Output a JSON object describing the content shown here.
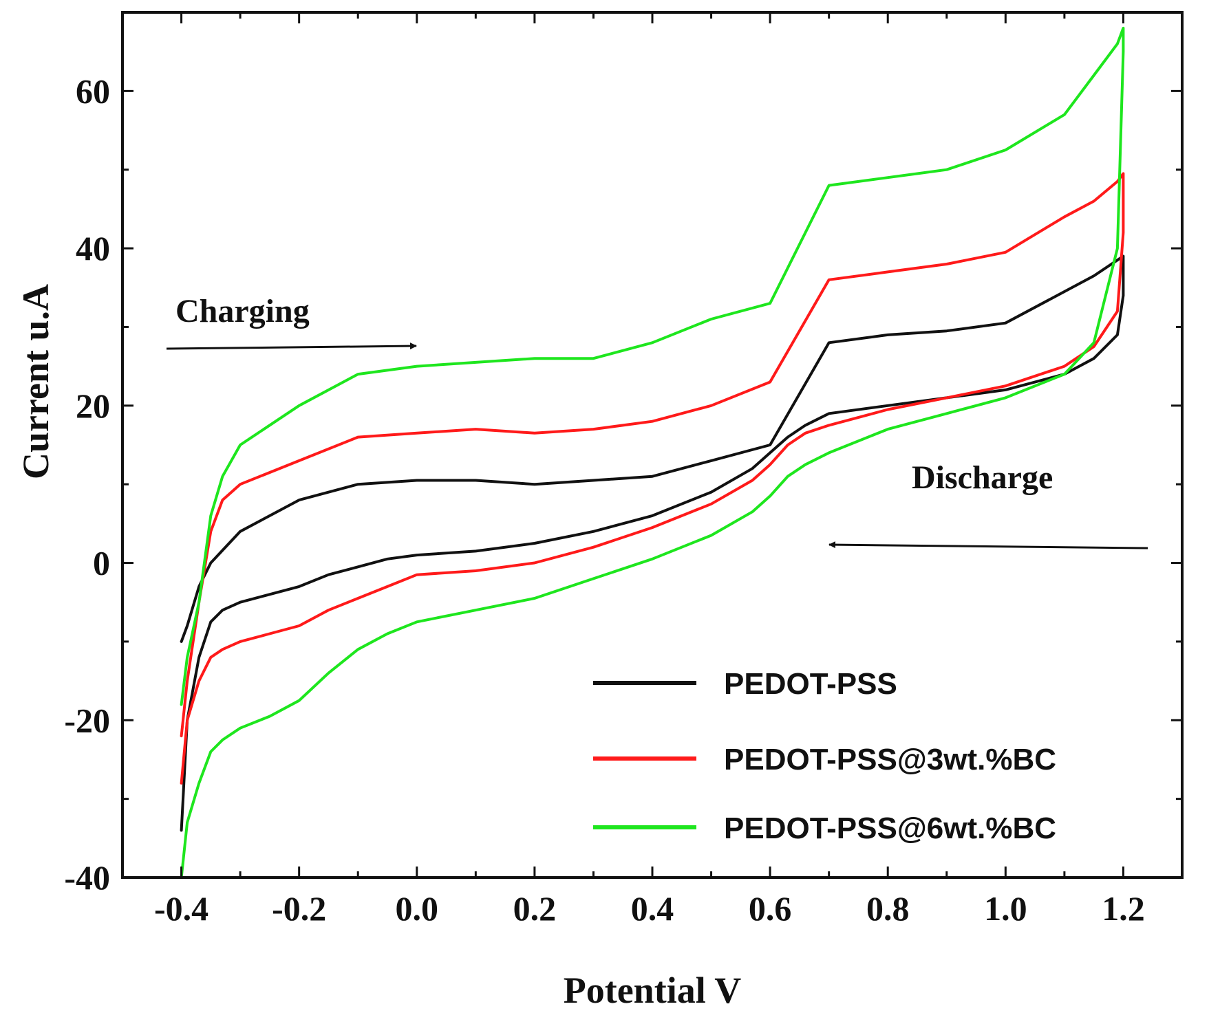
{
  "chart_data": {
    "type": "line",
    "title": "",
    "xlabel": "Potential V",
    "ylabel": "Current u.A",
    "xlim": [
      -0.5,
      1.3
    ],
    "ylim": [
      -40,
      70
    ],
    "xticks": [
      -0.4,
      -0.2,
      0.0,
      0.2,
      0.4,
      0.6,
      0.8,
      1.0,
      1.2
    ],
    "xtick_labels": [
      "-0.4",
      "-0.2",
      "0.0",
      "0.2",
      "0.4",
      "0.6",
      "0.8",
      "1.0",
      "1.2"
    ],
    "yticks": [
      -40,
      -20,
      0,
      20,
      40,
      60
    ],
    "ytick_labels": [
      "-40",
      "-20",
      "0",
      "20",
      "40",
      "60"
    ],
    "grid": false,
    "legend_position": "bottom-right",
    "annotations": [
      {
        "name": "charging",
        "text": "Charging",
        "direction": "right"
      },
      {
        "name": "discharge",
        "text": "Discharge",
        "direction": "left"
      }
    ],
    "series": [
      {
        "name": "PEDOT-PSS",
        "color": "#111111",
        "x": [
          -0.4,
          -0.39,
          -0.37,
          -0.35,
          -0.33,
          -0.3,
          -0.25,
          -0.2,
          -0.15,
          -0.1,
          -0.05,
          0.0,
          0.1,
          0.2,
          0.3,
          0.4,
          0.5,
          0.57,
          0.6,
          0.63,
          0.66,
          0.7,
          0.8,
          0.9,
          1.0,
          1.1,
          1.15,
          1.19,
          1.2,
          1.2,
          1.19,
          1.15,
          1.1,
          1.0,
          0.9,
          0.8,
          0.7,
          0.6,
          0.5,
          0.4,
          0.3,
          0.2,
          0.1,
          0.0,
          -0.1,
          -0.2,
          -0.3,
          -0.35,
          -0.37,
          -0.39,
          -0.4
        ],
        "y": [
          -34,
          -20,
          -12,
          -7.5,
          -6,
          -5,
          -4,
          -3,
          -1.5,
          -0.5,
          0.5,
          1.0,
          1.5,
          2.5,
          4,
          6,
          9,
          12,
          14,
          16,
          17.5,
          19,
          20,
          21,
          22,
          24,
          26,
          29,
          34,
          39,
          38.5,
          36.5,
          34.5,
          30.5,
          29.5,
          29,
          28,
          15,
          13,
          11,
          10.5,
          10,
          10.5,
          10.5,
          10,
          8,
          4,
          0,
          -3,
          -8,
          -10
        ]
      },
      {
        "name": "PEDOT-PSS@3wt.%BC",
        "color": "#ff1a1a",
        "x": [
          -0.4,
          -0.39,
          -0.37,
          -0.35,
          -0.33,
          -0.3,
          -0.25,
          -0.2,
          -0.15,
          -0.1,
          -0.05,
          0.0,
          0.1,
          0.2,
          0.3,
          0.4,
          0.5,
          0.57,
          0.6,
          0.63,
          0.66,
          0.7,
          0.8,
          0.9,
          1.0,
          1.1,
          1.15,
          1.19,
          1.2,
          1.2,
          1.19,
          1.15,
          1.1,
          1.0,
          0.9,
          0.8,
          0.7,
          0.6,
          0.5,
          0.4,
          0.3,
          0.2,
          0.1,
          0.0,
          -0.1,
          -0.2,
          -0.3,
          -0.33,
          -0.35,
          -0.37,
          -0.39,
          -0.4
        ],
        "y": [
          -28,
          -20,
          -15,
          -12,
          -11,
          -10,
          -9,
          -8,
          -6,
          -4.5,
          -3,
          -1.5,
          -1,
          0,
          2,
          4.5,
          7.5,
          10.5,
          12.5,
          15,
          16.5,
          17.5,
          19.5,
          21,
          22.5,
          25,
          27.5,
          32,
          42,
          49.5,
          48.5,
          46,
          44,
          39.5,
          38,
          37,
          36,
          23,
          20,
          18,
          17,
          16.5,
          17,
          16.5,
          16,
          13,
          10,
          8,
          4,
          -5,
          -15,
          -22
        ]
      },
      {
        "name": "PEDOT-PSS@6wt.%BC",
        "color": "#1ee61e",
        "x": [
          -0.4,
          -0.39,
          -0.37,
          -0.35,
          -0.33,
          -0.3,
          -0.25,
          -0.2,
          -0.15,
          -0.1,
          -0.05,
          0.0,
          0.1,
          0.2,
          0.3,
          0.4,
          0.5,
          0.57,
          0.6,
          0.63,
          0.66,
          0.7,
          0.8,
          0.9,
          1.0,
          1.1,
          1.15,
          1.19,
          1.2,
          1.2,
          1.19,
          1.15,
          1.1,
          1.0,
          0.9,
          0.8,
          0.7,
          0.6,
          0.5,
          0.4,
          0.3,
          0.2,
          0.1,
          0.0,
          -0.1,
          -0.2,
          -0.3,
          -0.33,
          -0.35,
          -0.37,
          -0.39,
          -0.4
        ],
        "y": [
          -40,
          -33,
          -28,
          -24,
          -22.5,
          -21,
          -19.5,
          -17.5,
          -14,
          -11,
          -9,
          -7.5,
          -6,
          -4.5,
          -2,
          0.5,
          3.5,
          6.5,
          8.5,
          11,
          12.5,
          14,
          17,
          19,
          21,
          24,
          28,
          40,
          65,
          68,
          66,
          62,
          57,
          52.5,
          50,
          49,
          48,
          33,
          31,
          28,
          26,
          26,
          25.5,
          25,
          24,
          20,
          15,
          11,
          6,
          -5,
          -12,
          -18
        ]
      }
    ]
  }
}
